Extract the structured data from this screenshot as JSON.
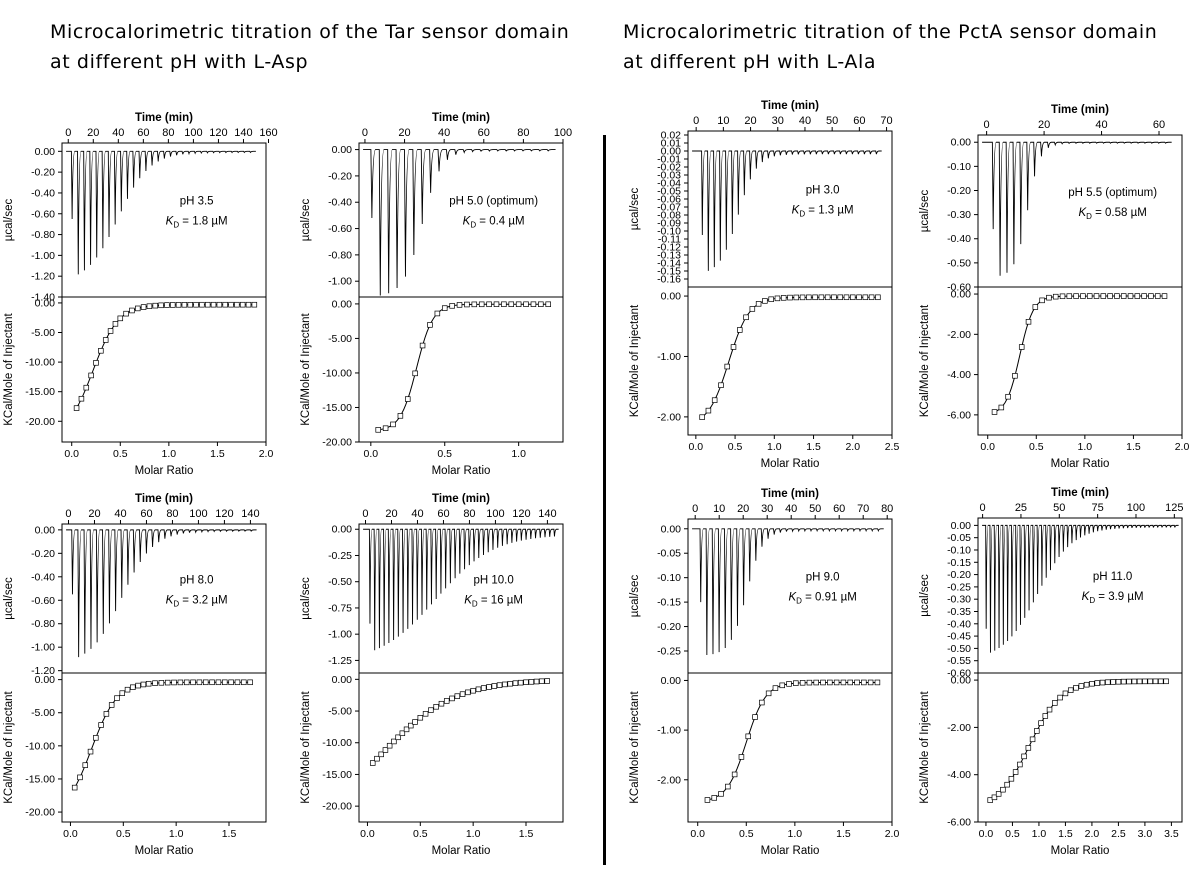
{
  "headings": {
    "left": {
      "line1": "Microcalorimetric titration of the Tar sensor domain",
      "line2": "at different pH with L-Asp"
    },
    "right": {
      "line1": "Microcalorimetric titration of the PctA sensor domain",
      "line2": "at different pH with L-Ala"
    }
  },
  "colors": {
    "ink": "#000000",
    "background": "#ffffff",
    "marker_fill": "#ffffff"
  },
  "chart_data": [
    {
      "type": "line",
      "panel": "Tar pH 3.5",
      "top": {
        "xlabel": "Time (min)",
        "ylabel": "µcal/sec",
        "xlim": [
          -5,
          158
        ],
        "xticks": [
          0,
          20,
          40,
          60,
          80,
          100,
          120,
          140,
          160
        ],
        "ylim": [
          -1.4,
          0.08
        ],
        "yticks": [
          0.0,
          -0.2,
          -0.4,
          -0.6,
          -0.8,
          -1.0,
          -1.2,
          -1.4
        ],
        "ydec": 2,
        "injections": {
          "count": 30,
          "t_start": 2.5,
          "t_end": 145,
          "first_peak": -0.65,
          "max_peak": -1.27,
          "tail_peak": -0.01,
          "midpoint_index": 7.5,
          "steepness": 2.5
        },
        "annotations": [
          "pH 3.5",
          "1.8 µM"
        ]
      },
      "bottom": {
        "xlabel": "Molar Ratio",
        "ylabel": "KCal/Mole of Injectant",
        "xlim": [
          -0.1,
          2.0
        ],
        "xticks": [
          0.0,
          0.5,
          1.0,
          1.5,
          2.0
        ],
        "ylim": [
          -23.5,
          1.0
        ],
        "yticks": [
          0.0,
          -5.0,
          -10.0,
          -15.0,
          -20.0
        ],
        "ydec": 2,
        "fit": {
          "dh_min": -22.5,
          "dh_max": -0.3,
          "x0": 0.22,
          "width": 0.13
        },
        "points_x": [
          0.05,
          0.1,
          0.15,
          0.2,
          0.25,
          0.3,
          0.35,
          0.4,
          0.45,
          0.5,
          0.56,
          0.62,
          0.68,
          0.74,
          0.8,
          0.86,
          0.92,
          0.98,
          1.04,
          1.1,
          1.16,
          1.22,
          1.28,
          1.34,
          1.4,
          1.46,
          1.52,
          1.58,
          1.64,
          1.7,
          1.76,
          1.82,
          1.88
        ]
      }
    },
    {
      "type": "line",
      "panel": "Tar pH 5.0",
      "top": {
        "xlabel": "Time (min)",
        "ylabel": "µcal/sec",
        "xlim": [
          -3,
          100
        ],
        "xticks": [
          0,
          20,
          40,
          60,
          80,
          100
        ],
        "ylim": [
          -1.12,
          0.05
        ],
        "yticks": [
          0.0,
          -0.2,
          -0.4,
          -0.6,
          -0.8,
          -1.0
        ],
        "ydec": 2,
        "injections": {
          "count": 22,
          "t_start": 3,
          "t_end": 92,
          "first_peak": -0.52,
          "max_peak": -1.12,
          "tail_peak": -0.01,
          "midpoint_index": 6,
          "steepness": 1.1
        },
        "annotations": [
          "pH 5.0 (optimum)",
          "0.4 µM"
        ]
      },
      "bottom": {
        "xlabel": "Molar Ratio",
        "ylabel": "KCal/Mole of Injectant",
        "xlim": [
          -0.08,
          1.3
        ],
        "xticks": [
          0.0,
          0.5,
          1.0
        ],
        "ylim": [
          -20.0,
          1.0
        ],
        "yticks": [
          0.0,
          -5.0,
          -10.0,
          -15.0,
          -20.0
        ],
        "ydec": 2,
        "fit": {
          "dh_min": -18.4,
          "dh_max": -0.05,
          "x0": 0.31,
          "width": 0.055
        },
        "points_x": [
          0.05,
          0.1,
          0.15,
          0.2,
          0.25,
          0.3,
          0.35,
          0.4,
          0.45,
          0.5,
          0.55,
          0.6,
          0.65,
          0.7,
          0.75,
          0.8,
          0.85,
          0.9,
          0.95,
          1.0,
          1.05,
          1.1,
          1.15,
          1.2
        ]
      }
    },
    {
      "type": "line",
      "panel": "PctA pH 3.0",
      "top": {
        "xlabel": "Time (min)",
        "ylabel": "µcal/sec",
        "xlim": [
          -3,
          72
        ],
        "xticks": [
          0,
          10,
          20,
          30,
          40,
          50,
          60,
          70
        ],
        "ylim": [
          -0.17,
          0.025
        ],
        "yticks": [
          0.02,
          0.01,
          0.0,
          -0.01,
          -0.02,
          -0.03,
          -0.04,
          -0.05,
          -0.06,
          -0.07,
          -0.08,
          -0.09,
          -0.1,
          -0.11,
          -0.12,
          -0.13,
          -0.14,
          -0.15,
          -0.16
        ],
        "ydec": 2,
        "injections": {
          "count": 30,
          "t_start": 2,
          "t_end": 66,
          "first_peak": -0.105,
          "max_peak": -0.155,
          "tail_peak": -0.004,
          "midpoint_index": 6,
          "steepness": 1.5
        },
        "annotations": [
          "pH 3.0",
          "1.3 µM"
        ]
      },
      "bottom": {
        "xlabel": "Molar Ratio",
        "ylabel": "KCal/Mole of Injectant",
        "xlim": [
          -0.1,
          2.5
        ],
        "xticks": [
          0.0,
          0.5,
          1.0,
          1.5,
          2.0,
          2.5
        ],
        "ylim": [
          -2.3,
          0.15
        ],
        "yticks": [
          0.0,
          -1.0,
          -2.0
        ],
        "ydec": 2,
        "fit": {
          "dh_min": -2.15,
          "dh_max": -0.02,
          "x0": 0.42,
          "width": 0.13
        },
        "points_x": [
          0.08,
          0.16,
          0.24,
          0.32,
          0.4,
          0.48,
          0.56,
          0.64,
          0.72,
          0.8,
          0.88,
          0.96,
          1.04,
          1.12,
          1.2,
          1.28,
          1.36,
          1.44,
          1.52,
          1.6,
          1.68,
          1.76,
          1.84,
          1.92,
          2.0,
          2.08,
          2.16,
          2.24,
          2.32
        ]
      }
    },
    {
      "type": "line",
      "panel": "PctA pH 5.5",
      "top": {
        "xlabel": "Time (min)",
        "ylabel": "µcal/sec",
        "xlim": [
          -3,
          68
        ],
        "xticks": [
          0,
          20,
          40,
          60
        ],
        "ylim": [
          -0.6,
          0.03
        ],
        "yticks": [
          0.0,
          -0.1,
          -0.2,
          -0.3,
          -0.4,
          -0.5,
          -0.6
        ],
        "ydec": 2,
        "injections": {
          "count": 26,
          "t_start": 2,
          "t_end": 62,
          "first_peak": -0.36,
          "max_peak": -0.56,
          "tail_peak": -0.004,
          "midpoint_index": 5,
          "steepness": 0.9
        },
        "annotations": [
          "pH 5.5 (optimum)",
          "0.58 µM"
        ]
      },
      "bottom": {
        "xlabel": "Molar Ratio",
        "ylabel": "KCal/Mole of Injectant",
        "xlim": [
          -0.1,
          2.0
        ],
        "xticks": [
          0.0,
          0.5,
          1.0,
          1.5,
          2.0
        ],
        "ylim": [
          -7.0,
          0.35
        ],
        "yticks": [
          0.0,
          -2.0,
          -4.0,
          -6.0
        ],
        "ydec": 2,
        "fit": {
          "dh_min": -6.0,
          "dh_max": -0.1,
          "x0": 0.33,
          "width": 0.07
        },
        "points_x": [
          0.07,
          0.14,
          0.21,
          0.28,
          0.35,
          0.42,
          0.49,
          0.56,
          0.63,
          0.7,
          0.77,
          0.84,
          0.91,
          0.98,
          1.05,
          1.12,
          1.19,
          1.26,
          1.33,
          1.4,
          1.47,
          1.54,
          1.61,
          1.68,
          1.75,
          1.82
        ]
      }
    },
    {
      "type": "line",
      "panel": "Tar pH 8.0",
      "top": {
        "xlabel": "Time (min)",
        "ylabel": "µcal/sec",
        "xlim": [
          -5,
          152
        ],
        "xticks": [
          0,
          20,
          40,
          60,
          80,
          100,
          120,
          140
        ],
        "ylim": [
          -1.22,
          0.05
        ],
        "yticks": [
          0.0,
          -0.2,
          -0.4,
          -0.6,
          -0.8,
          -1.0,
          -1.2
        ],
        "ydec": 2,
        "injections": {
          "count": 30,
          "t_start": 2.5,
          "t_end": 140,
          "first_peak": -0.55,
          "max_peak": -1.15,
          "tail_peak": -0.01,
          "midpoint_index": 8,
          "steepness": 2.5
        },
        "annotations": [
          "pH 8.0",
          "3.2 µM"
        ]
      },
      "bottom": {
        "xlabel": "Molar Ratio",
        "ylabel": "KCal/Mole of Injectant",
        "xlim": [
          -0.08,
          1.85
        ],
        "xticks": [
          0.0,
          0.5,
          1.0,
          1.5
        ],
        "ylim": [
          -21.5,
          1.0
        ],
        "yticks": [
          0.0,
          -5.0,
          -10.0,
          -15.0,
          -20.0
        ],
        "ydec": 2,
        "fit": {
          "dh_min": -20.5,
          "dh_max": -0.4,
          "x0": 0.2,
          "width": 0.12
        },
        "points_x": [
          0.04,
          0.09,
          0.14,
          0.19,
          0.24,
          0.29,
          0.34,
          0.39,
          0.44,
          0.49,
          0.54,
          0.59,
          0.64,
          0.69,
          0.74,
          0.8,
          0.86,
          0.92,
          0.98,
          1.04,
          1.1,
          1.16,
          1.22,
          1.28,
          1.34,
          1.4,
          1.46,
          1.52,
          1.58,
          1.64,
          1.7
        ]
      }
    },
    {
      "type": "line",
      "panel": "Tar pH 10.0",
      "top": {
        "xlabel": "Time (min)",
        "ylabel": "µcal/sec",
        "xlim": [
          -5,
          152
        ],
        "xticks": [
          0,
          20,
          40,
          60,
          80,
          100,
          120,
          140
        ],
        "ylim": [
          -1.37,
          0.05
        ],
        "yticks": [
          0.0,
          -0.25,
          -0.5,
          -0.75,
          -1.0,
          -1.25
        ],
        "ydec": 2,
        "injections": {
          "count": 40,
          "t_start": 3,
          "t_end": 145,
          "first_peak": -0.9,
          "max_peak": -1.28,
          "tail_peak": -0.05,
          "midpoint_index": 14,
          "steepness": 6
        },
        "annotations": [
          "pH 10.0",
          "16 µM"
        ]
      },
      "bottom": {
        "xlabel": "Molar Ratio",
        "ylabel": "KCal/Mole of Injectant",
        "xlim": [
          -0.08,
          1.85
        ],
        "xticks": [
          0.0,
          0.5,
          1.0,
          1.5
        ],
        "ylim": [
          -22.5,
          1.0
        ],
        "yticks": [
          0.0,
          -5.0,
          -10.0,
          -15.0,
          -20.0
        ],
        "ydec": 2,
        "fit": {
          "dh_min": -24,
          "dh_max": 0,
          "x0": 0.12,
          "width": 0.35
        },
        "points_x": [
          0.05,
          0.09,
          0.13,
          0.17,
          0.21,
          0.25,
          0.29,
          0.33,
          0.37,
          0.41,
          0.45,
          0.5,
          0.55,
          0.6,
          0.65,
          0.7,
          0.75,
          0.8,
          0.85,
          0.9,
          0.95,
          1.0,
          1.05,
          1.1,
          1.15,
          1.2,
          1.25,
          1.3,
          1.35,
          1.4,
          1.45,
          1.5,
          1.55,
          1.6,
          1.65,
          1.7
        ]
      }
    },
    {
      "type": "line",
      "panel": "PctA pH 9.0",
      "top": {
        "xlabel": "Time (min)",
        "ylabel": "µcal/sec",
        "xlim": [
          -3,
          82
        ],
        "xticks": [
          0,
          10,
          20,
          30,
          40,
          50,
          60,
          70,
          80
        ],
        "ylim": [
          -0.295,
          0.02
        ],
        "yticks": [
          0.0,
          -0.05,
          -0.1,
          -0.15,
          -0.2,
          -0.25
        ],
        "ydec": 2,
        "injections": {
          "count": 30,
          "t_start": 2,
          "t_end": 76,
          "first_peak": -0.15,
          "max_peak": -0.26,
          "tail_peak": -0.004,
          "midpoint_index": 7.5,
          "steepness": 1.3
        },
        "annotations": [
          "pH 9.0",
          "0.91 µM"
        ]
      },
      "bottom": {
        "xlabel": "Molar Ratio",
        "ylabel": "KCal/Mole of Injectant",
        "xlim": [
          -0.1,
          2.0
        ],
        "xticks": [
          0.0,
          0.5,
          1.0,
          1.5,
          2.0
        ],
        "ylim": [
          -2.85,
          0.15
        ],
        "yticks": [
          0.0,
          -1.0,
          -2.0
        ],
        "ydec": 2,
        "fit": {
          "dh_min": -2.45,
          "dh_max": -0.04,
          "x0": 0.5,
          "width": 0.1
        },
        "points_x": [
          0.1,
          0.17,
          0.24,
          0.31,
          0.38,
          0.45,
          0.52,
          0.59,
          0.66,
          0.73,
          0.8,
          0.87,
          0.94,
          1.01,
          1.08,
          1.15,
          1.22,
          1.29,
          1.36,
          1.43,
          1.5,
          1.57,
          1.64,
          1.71,
          1.78,
          1.85
        ]
      }
    },
    {
      "type": "line",
      "panel": "PctA pH 11.0",
      "top": {
        "xlabel": "Time (min)",
        "ylabel": "µcal/sec",
        "xlim": [
          -3,
          130
        ],
        "xticks": [
          0,
          25,
          50,
          75,
          100,
          125
        ],
        "ylim": [
          -0.6,
          0.03
        ],
        "yticks": [
          0.0,
          -0.05,
          -0.1,
          -0.15,
          -0.2,
          -0.25,
          -0.3,
          -0.35,
          -0.4,
          -0.45,
          -0.5,
          -0.55,
          -0.6
        ],
        "ydec": 2,
        "injections": {
          "count": 45,
          "t_start": 2,
          "t_end": 125,
          "first_peak": -0.42,
          "max_peak": -0.55,
          "tail_peak": -0.008,
          "midpoint_index": 12,
          "steepness": 4
        },
        "annotations": [
          "pH 11.0",
          "3.9 µM"
        ]
      },
      "bottom": {
        "xlabel": "Molar Ratio",
        "ylabel": "KCal/Mole of Injectant",
        "xlim": [
          -0.15,
          3.7
        ],
        "xticks": [
          0.0,
          0.5,
          1.0,
          1.5,
          2.0,
          2.5,
          3.0,
          3.5
        ],
        "ylim": [
          -6.0,
          0.3
        ],
        "yticks": [
          0.0,
          -2.0,
          -4.0,
          -6.0
        ],
        "ydec": 2,
        "fit": {
          "dh_min": -5.5,
          "dh_max": -0.05,
          "x0": 0.82,
          "width": 0.3
        },
        "points_x": [
          0.08,
          0.16,
          0.24,
          0.32,
          0.4,
          0.48,
          0.56,
          0.64,
          0.72,
          0.8,
          0.88,
          0.96,
          1.04,
          1.12,
          1.2,
          1.3,
          1.4,
          1.5,
          1.6,
          1.7,
          1.8,
          1.9,
          2.0,
          2.1,
          2.2,
          2.3,
          2.4,
          2.5,
          2.6,
          2.7,
          2.8,
          2.9,
          3.0,
          3.1,
          3.2,
          3.3,
          3.4
        ]
      }
    }
  ]
}
